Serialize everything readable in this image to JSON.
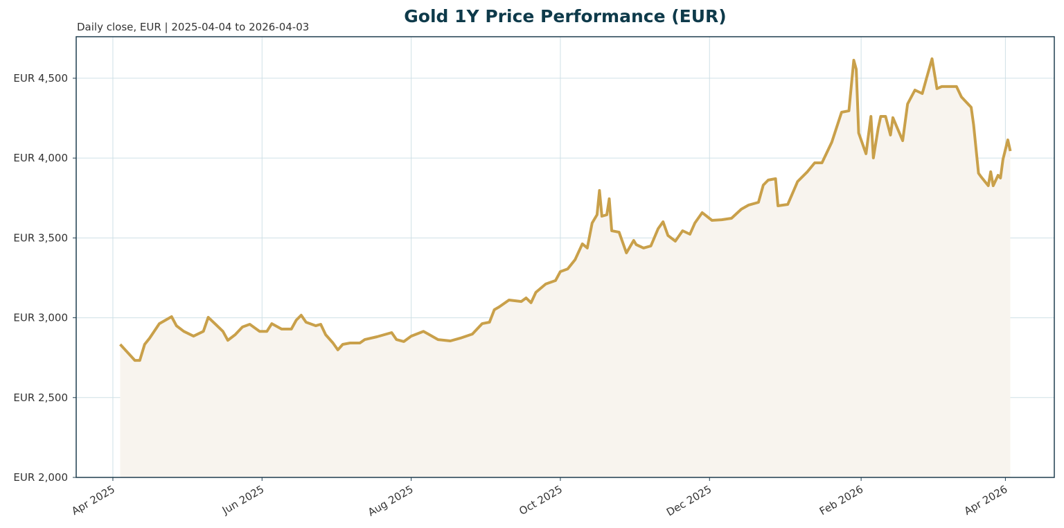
{
  "chart_data": {
    "type": "line",
    "title": "Gold 1Y Price Performance (EUR)",
    "subtitle": "Daily close, EUR | 2025-04-04 to 2026-04-03",
    "grid": true,
    "xlim": [
      "2025-03-17",
      "2026-04-21"
    ],
    "ylim": [
      2000,
      4760
    ],
    "xticks": [
      {
        "value": "2025-04-01",
        "label": "Apr 2025"
      },
      {
        "value": "2025-06-01",
        "label": "Jun 2025"
      },
      {
        "value": "2025-08-01",
        "label": "Aug 2025"
      },
      {
        "value": "2025-10-01",
        "label": "Oct 2025"
      },
      {
        "value": "2025-12-01",
        "label": "Dec 2025"
      },
      {
        "value": "2026-02-01",
        "label": "Feb 2026"
      },
      {
        "value": "2026-04-01",
        "label": "Apr 2026"
      }
    ],
    "yticks": [
      {
        "value": 2000,
        "label": "EUR 2,000"
      },
      {
        "value": 2500,
        "label": "EUR 2,500"
      },
      {
        "value": 3000,
        "label": "EUR 3,000"
      },
      {
        "value": 3500,
        "label": "EUR 3,500"
      },
      {
        "value": 4000,
        "label": "EUR 4,000"
      },
      {
        "value": 4500,
        "label": "EUR 4,500"
      }
    ],
    "x": [
      "2025-04-04",
      "2025-04-10",
      "2025-04-12",
      "2025-04-14",
      "2025-04-16",
      "2025-04-20",
      "2025-04-25",
      "2025-04-27",
      "2025-04-30",
      "2025-05-04",
      "2025-05-08",
      "2025-05-10",
      "2025-05-13",
      "2025-05-16",
      "2025-05-18",
      "2025-05-21",
      "2025-05-24",
      "2025-05-27",
      "2025-05-31",
      "2025-06-03",
      "2025-06-05",
      "2025-06-09",
      "2025-06-13",
      "2025-06-15",
      "2025-06-17",
      "2025-06-19",
      "2025-06-23",
      "2025-06-25",
      "2025-06-27",
      "2025-06-30",
      "2025-07-02",
      "2025-07-04",
      "2025-07-07",
      "2025-07-11",
      "2025-07-13",
      "2025-07-18",
      "2025-07-24",
      "2025-07-26",
      "2025-07-29",
      "2025-08-01",
      "2025-08-06",
      "2025-08-08",
      "2025-08-12",
      "2025-08-17",
      "2025-08-21",
      "2025-08-26",
      "2025-08-30",
      "2025-09-02",
      "2025-09-04",
      "2025-09-06",
      "2025-09-10",
      "2025-09-15",
      "2025-09-17",
      "2025-09-19",
      "2025-09-21",
      "2025-09-25",
      "2025-09-29",
      "2025-10-01",
      "2025-10-04",
      "2025-10-07",
      "2025-10-10",
      "2025-10-12",
      "2025-10-14",
      "2025-10-16",
      "2025-10-17",
      "2025-10-18",
      "2025-10-20",
      "2025-10-21",
      "2025-10-22",
      "2025-10-25",
      "2025-10-28",
      "2025-10-31",
      "2025-11-01",
      "2025-11-04",
      "2025-11-07",
      "2025-11-10",
      "2025-11-12",
      "2025-11-14",
      "2025-11-17",
      "2025-11-20",
      "2025-11-23",
      "2025-11-25",
      "2025-11-28",
      "2025-12-02",
      "2025-12-06",
      "2025-12-10",
      "2025-12-14",
      "2025-12-17",
      "2025-12-21",
      "2025-12-23",
      "2025-12-25",
      "2025-12-28",
      "2025-12-29",
      "2026-01-02",
      "2026-01-06",
      "2026-01-10",
      "2026-01-13",
      "2026-01-16",
      "2026-01-20",
      "2026-01-24",
      "2026-01-27",
      "2026-01-29",
      "2026-01-30",
      "2026-01-31",
      "2026-02-03",
      "2026-02-05",
      "2026-02-06",
      "2026-02-08",
      "2026-02-09",
      "2026-02-11",
      "2026-02-13",
      "2026-02-14",
      "2026-02-18",
      "2026-02-20",
      "2026-02-23",
      "2026-02-26",
      "2026-02-28",
      "2026-03-02",
      "2026-03-04",
      "2026-03-06",
      "2026-03-09",
      "2026-03-12",
      "2026-03-14",
      "2026-03-18",
      "2026-03-19",
      "2026-03-21",
      "2026-03-22",
      "2026-03-25",
      "2026-03-26",
      "2026-03-27",
      "2026-03-29",
      "2026-03-30",
      "2026-03-31",
      "2026-04-02",
      "2026-04-03"
    ],
    "series": [
      {
        "name": "Gold",
        "color": "#c9a04a",
        "fill": "#f8f4ee",
        "values": [
          2833,
          2733,
          2733,
          2833,
          2872,
          2963,
          3007,
          2950,
          2915,
          2885,
          2915,
          3003,
          2959,
          2915,
          2859,
          2894,
          2942,
          2959,
          2915,
          2915,
          2963,
          2929,
          2929,
          2985,
          3016,
          2972,
          2950,
          2959,
          2894,
          2842,
          2799,
          2833,
          2842,
          2842,
          2863,
          2881,
          2907,
          2863,
          2851,
          2885,
          2915,
          2898,
          2863,
          2855,
          2872,
          2898,
          2963,
          2972,
          3050,
          3068,
          3111,
          3102,
          3124,
          3094,
          3159,
          3211,
          3233,
          3289,
          3306,
          3363,
          3463,
          3437,
          3593,
          3645,
          3797,
          3636,
          3645,
          3745,
          3545,
          3536,
          3406,
          3484,
          3458,
          3437,
          3450,
          3558,
          3601,
          3515,
          3480,
          3545,
          3523,
          3593,
          3658,
          3610,
          3614,
          3623,
          3680,
          3706,
          3723,
          3831,
          3862,
          3871,
          3701,
          3710,
          3853,
          3914,
          3970,
          3970,
          4100,
          4287,
          4296,
          4613,
          4556,
          4157,
          4027,
          4261,
          4001,
          4188,
          4261,
          4261,
          4144,
          4253,
          4109,
          4339,
          4426,
          4404,
          4513,
          4622,
          4435,
          4448,
          4448,
          4448,
          4383,
          4318,
          4209,
          3905,
          3884,
          3827,
          3914,
          3827,
          3892,
          3875,
          3992,
          4114,
          4044
        ]
      }
    ]
  }
}
